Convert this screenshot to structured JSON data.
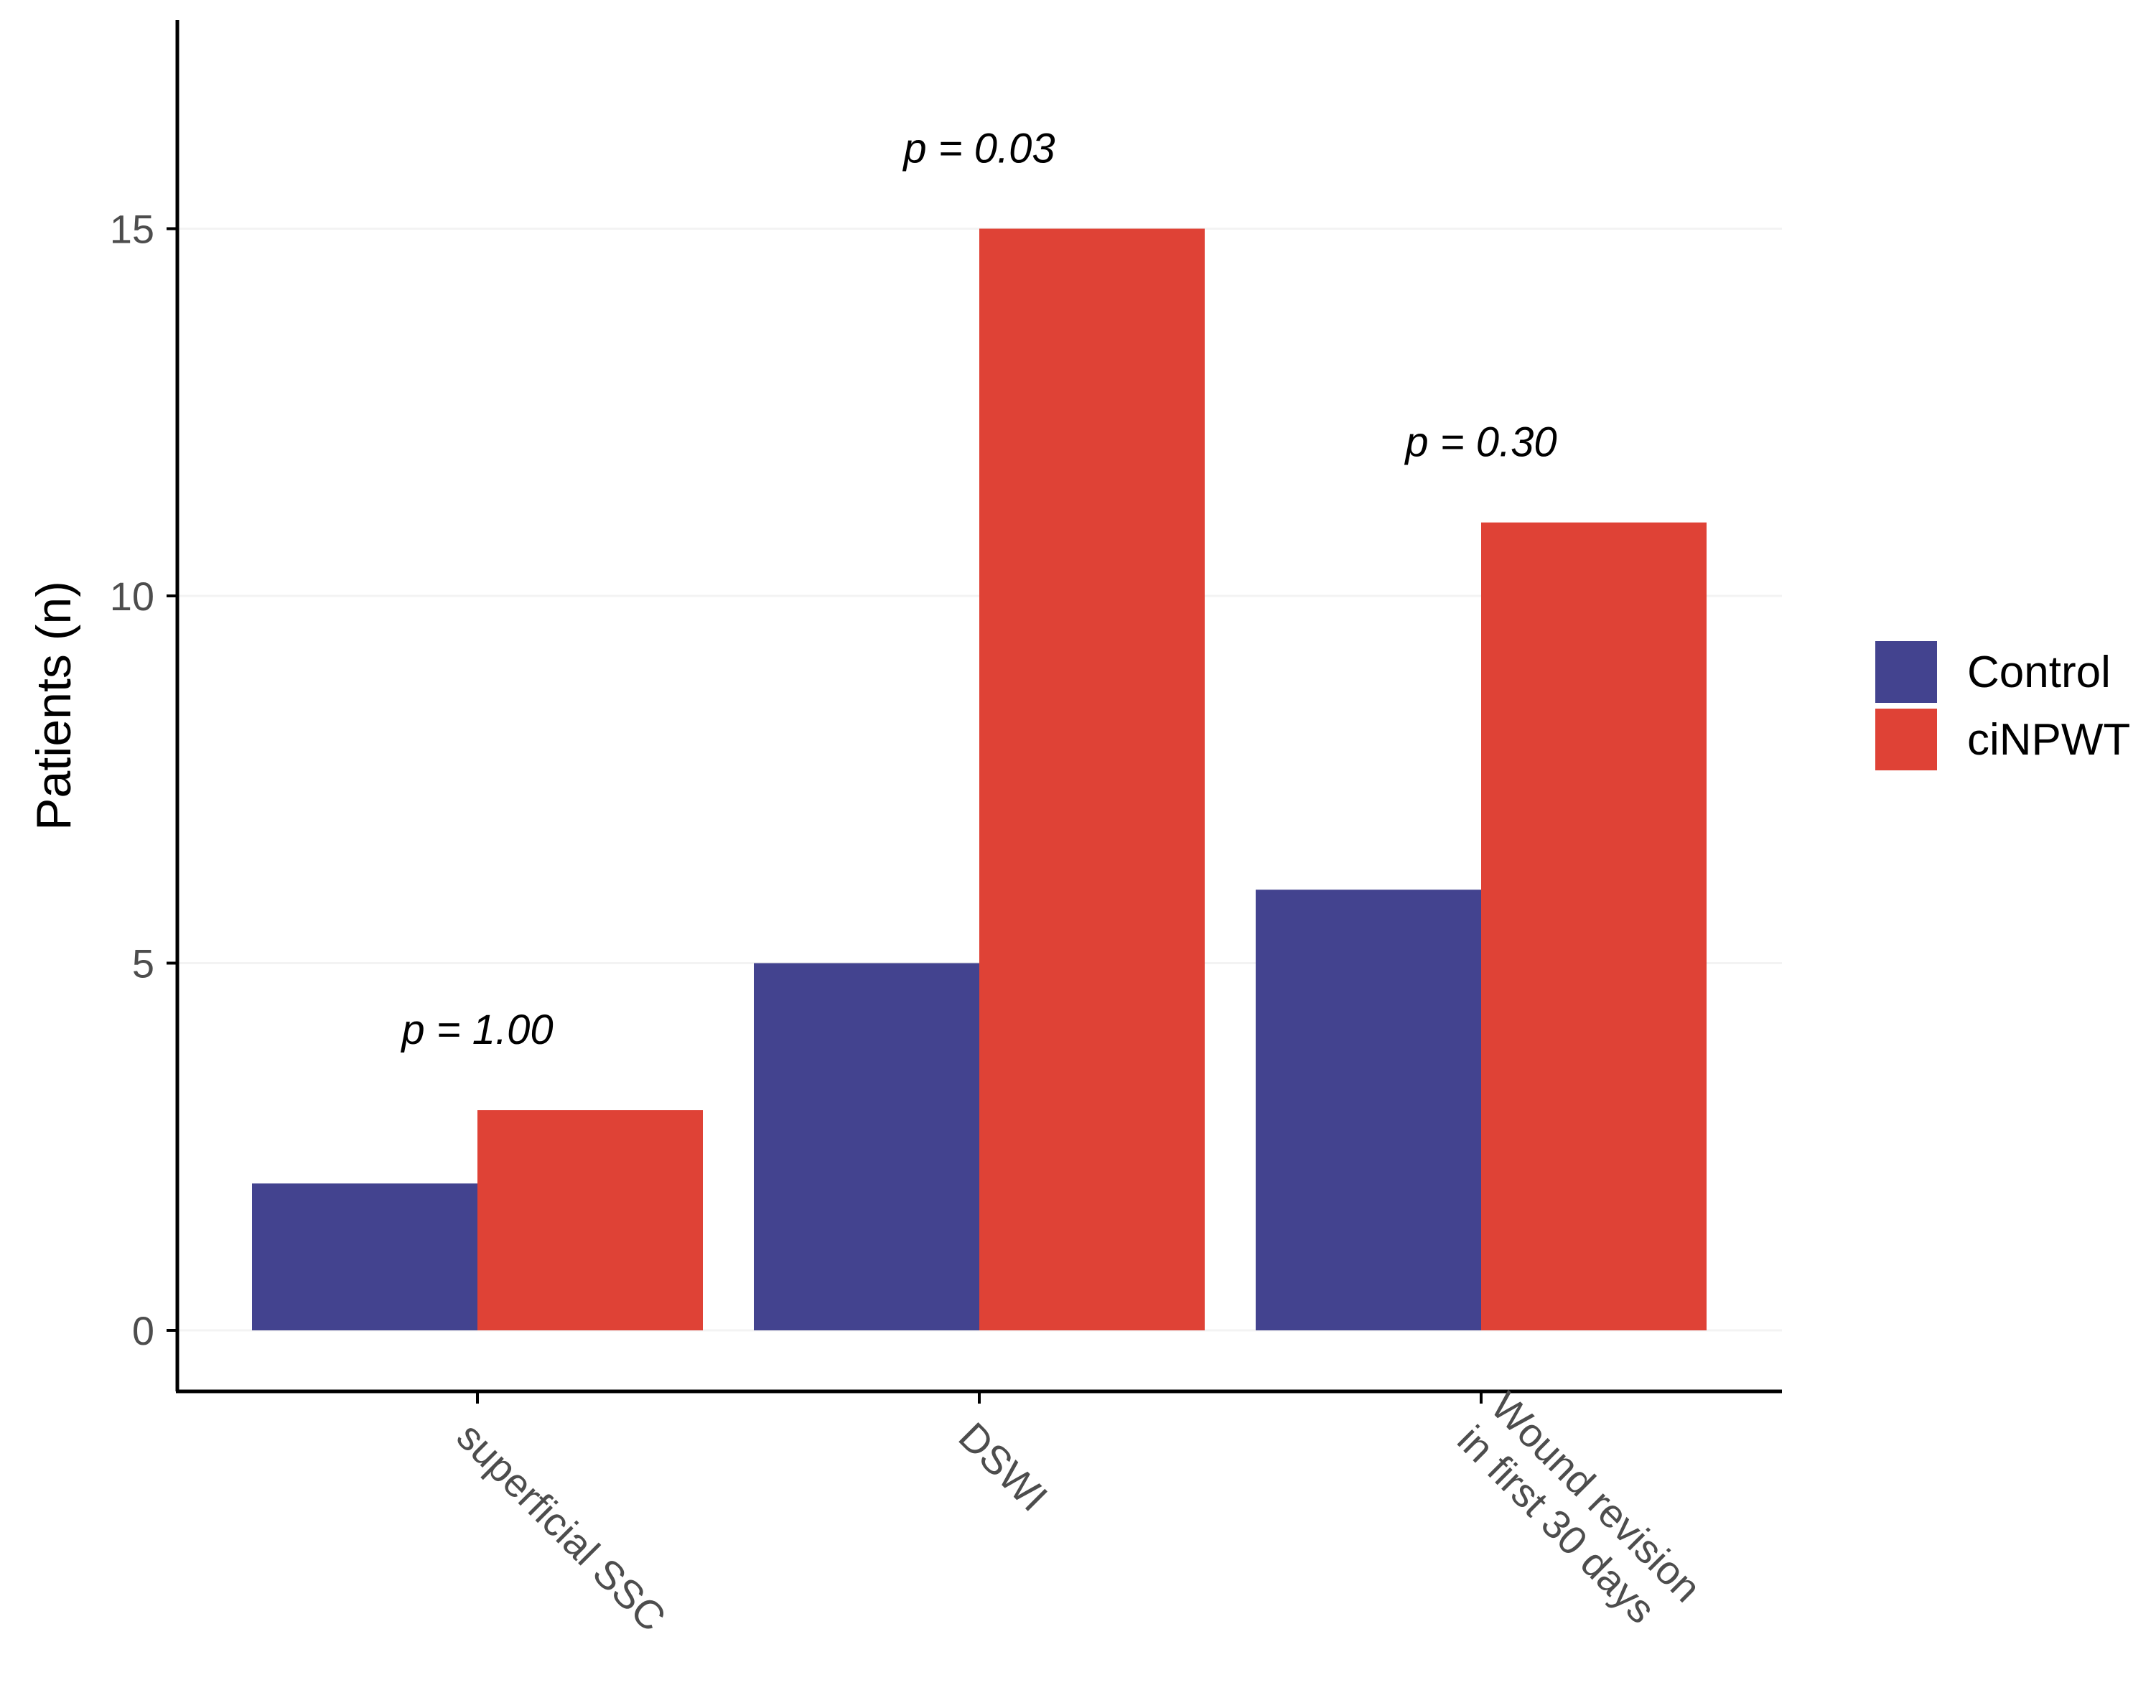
{
  "chart_data": {
    "type": "bar",
    "categories": [
      "superficial SSC",
      "DSWI",
      "Wound revision\nin first 30 days"
    ],
    "series": [
      {
        "name": "Control",
        "values": [
          2,
          5,
          6
        ],
        "color": "#43438F"
      },
      {
        "name": "ciNPWT",
        "values": [
          3,
          15,
          11
        ],
        "color": "#DF4236"
      }
    ],
    "annotations": [
      "p = 1.00",
      "p = 0.03",
      "p = 0.30"
    ],
    "ylabel": "Patients (n)",
    "xlabel": "",
    "ylim": [
      -0.85,
      18
    ],
    "yticks": [
      0,
      5,
      10,
      15
    ],
    "grid": true,
    "legend_position": "right"
  }
}
